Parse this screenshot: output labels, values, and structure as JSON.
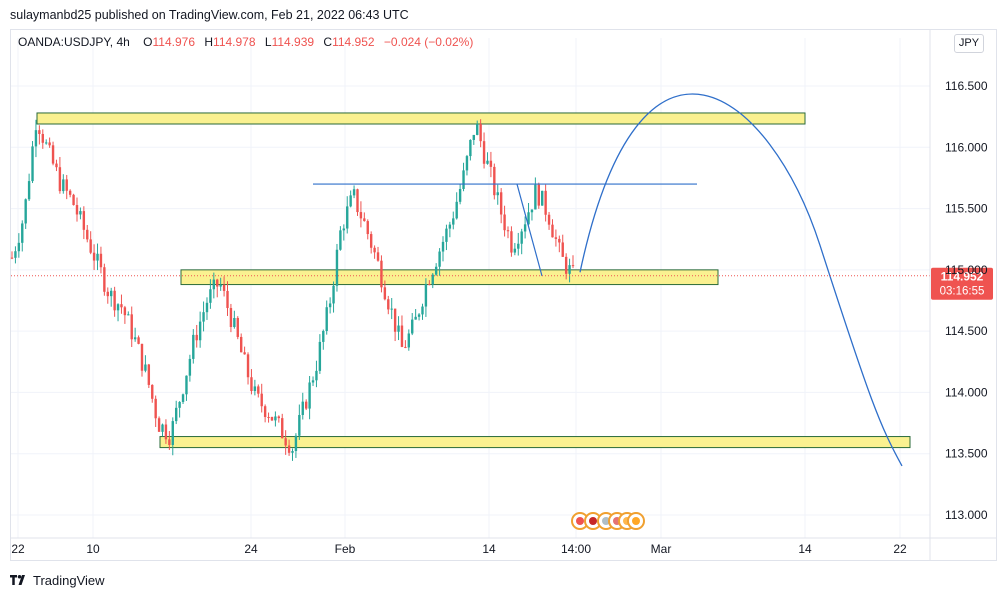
{
  "header": {
    "publish_line": "sulaymanbd25 published on TradingView.com, Feb 21, 2022 06:43 UTC"
  },
  "legend": {
    "symbol": "OANDA:USDJPY, 4h",
    "open_label": "O",
    "open": "114.976",
    "high_label": "H",
    "high": "114.978",
    "low_label": "L",
    "low": "114.939",
    "close_label": "C",
    "close": "114.952",
    "change": "−0.024 (−0.02%)"
  },
  "currency_button": "JPY",
  "price_badge": {
    "price": "114.952",
    "countdown": "03:16:55",
    "color": "#ef5350"
  },
  "footer": {
    "brand": "TradingView"
  },
  "colors": {
    "up": "#26a69a",
    "down": "#ef5350",
    "zone_fill": "#faf190",
    "zone_border": "#2a6a3a",
    "drawing_line": "#2f6fca",
    "price_line": "#ef5350"
  },
  "chart_data": {
    "type": "candlestick",
    "symbol": "OANDA:USDJPY",
    "timeframe": "4h",
    "y_ticks": [
      "116.500",
      "116.000",
      "115.500",
      "115.000",
      "114.500",
      "114.000",
      "113.500",
      "113.000"
    ],
    "y_tick_values": [
      116.5,
      116.0,
      115.5,
      115.0,
      114.5,
      114.0,
      113.5,
      113.0
    ],
    "x_ticks": [
      "22",
      "10",
      "24",
      "Feb",
      "14",
      "14:00",
      "Mar",
      "14",
      "22"
    ],
    "last_price": 114.952,
    "close_path": [
      115.1,
      115.45,
      116.25,
      115.95,
      115.7,
      115.55,
      115.3,
      115.05,
      114.8,
      114.7,
      114.45,
      114.15,
      113.75,
      113.65,
      114.05,
      114.45,
      114.75,
      114.9,
      114.6,
      114.25,
      113.95,
      113.85,
      113.7,
      113.55,
      113.9,
      114.25,
      114.7,
      115.35,
      115.6,
      115.35,
      115.05,
      114.7,
      114.35,
      114.55,
      114.9,
      115.15,
      115.4,
      115.75,
      116.2,
      115.85,
      115.5,
      115.2,
      115.4,
      115.65,
      115.45,
      115.1,
      114.95
    ],
    "zones": [
      {
        "name": "resistance-zone-upper",
        "low": 116.19,
        "high": 116.28
      },
      {
        "name": "support-zone-middle",
        "low": 114.88,
        "high": 115.0
      },
      {
        "name": "support-zone-lower",
        "low": 113.55,
        "high": 113.64
      }
    ],
    "trend_line_level": 115.7,
    "projection": {
      "start": 114.98,
      "peak": 116.3,
      "end": 113.4
    }
  }
}
